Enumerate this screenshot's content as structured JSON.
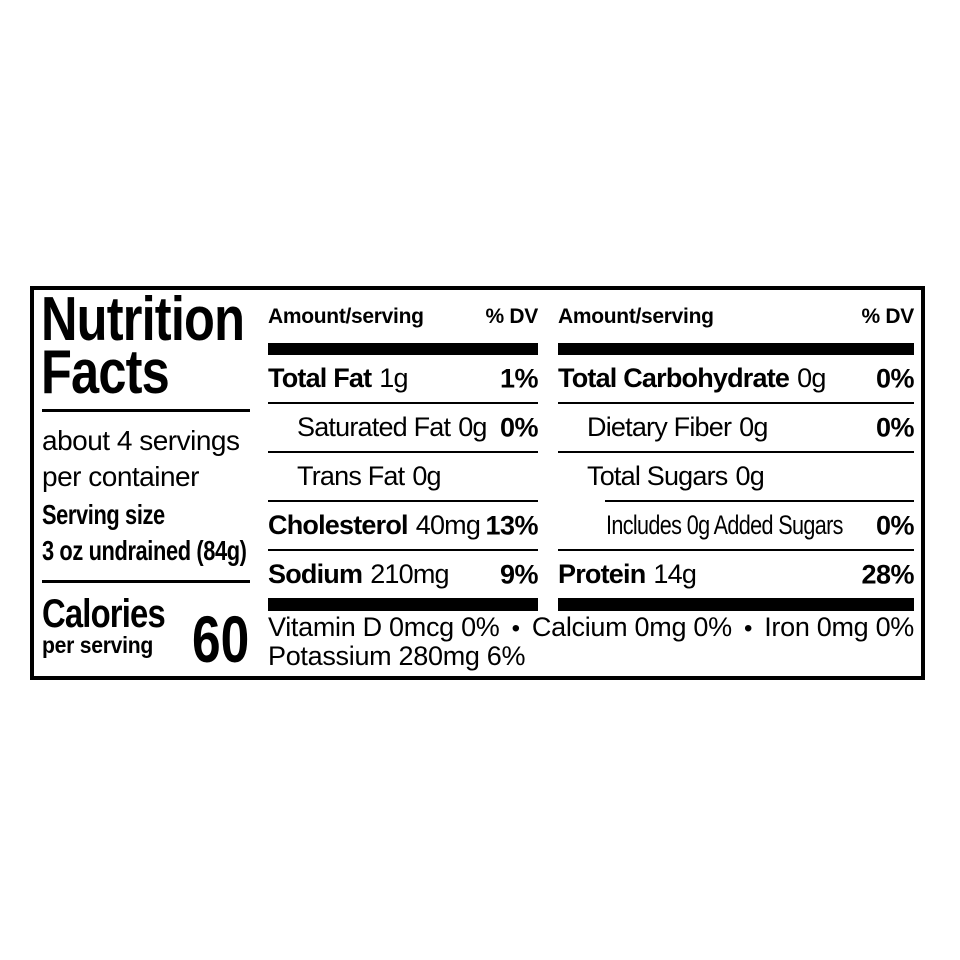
{
  "label": {
    "title": {
      "line1": "Nutrition",
      "line2": "Facts"
    },
    "servings": {
      "line1": "about 4 servings",
      "line2": "per container"
    },
    "serving_size": {
      "label": "Serving size",
      "value": "3 oz undrained (84g)"
    },
    "calories": {
      "label": "Calories",
      "sublabel": "per serving",
      "value": "60"
    },
    "columns": {
      "header_amount": "Amount/serving",
      "header_dv": "% DV"
    },
    "left_rows": [
      {
        "name": "Total Fat",
        "value": "1g",
        "dv": "1%"
      },
      {
        "name": "Saturated Fat",
        "value": "0g",
        "dv": "0%"
      },
      {
        "name": "Trans Fat",
        "value": "0g",
        "dv": ""
      },
      {
        "name": "Cholesterol",
        "value": "40mg",
        "dv": "13%"
      },
      {
        "name": "Sodium",
        "value": "210mg",
        "dv": "9%"
      }
    ],
    "right_rows": [
      {
        "name": "Total Carbohydrate",
        "value": "0g",
        "dv": "0%"
      },
      {
        "name": "Dietary Fiber",
        "value": "0g",
        "dv": "0%"
      },
      {
        "name": "Total Sugars",
        "value": "0g",
        "dv": ""
      },
      {
        "name": "Includes 0g Added Sugars",
        "value": "",
        "dv": "0%"
      },
      {
        "name": "Protein",
        "value": "14g",
        "dv": "28%"
      }
    ],
    "micros": {
      "vitamin_d": "Vitamin D 0mcg 0%",
      "separator": "•",
      "calcium": "Calcium 0mg 0%",
      "iron": "Iron 0mg 0%",
      "potassium": "Potassium 280mg 6%"
    },
    "colors": {
      "ink": "#000000",
      "paper": "#ffffff"
    }
  }
}
